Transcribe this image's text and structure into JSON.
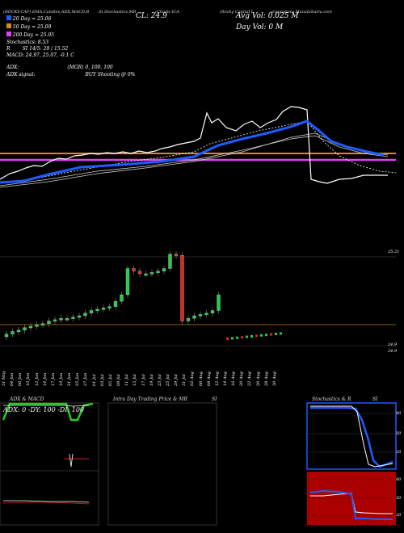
{
  "header": {
    "top_left": "(ROCKY.CAP) EMA,Candles,ADX,MACD,B",
    "top_mid": "SI,Stochastics,MR",
    "top_mid2": "(Charts ICA",
    "top_right": "(Rocky Capital I",
    "top_right2": "orporation) MunafaSutra.com"
  },
  "info": {
    "ema20": "20 Day = 25.06",
    "ema50": "50 Day = 25.09",
    "ema200": "200 Day = 25.05",
    "stoch": "Stochastics: 8.53",
    "rsi": "SI 14/5: 29 / 15.52",
    "rsi_prefix": "R",
    "macd": "MACD: 24.97, 25.07, -0.1 C",
    "close_label": "CL: 24.9",
    "avg_vol": "Avg Vol: 0.025 M",
    "day_vol": "Day Vol: 0   M",
    "adx_line1": "ADX:",
    "adx_line1_vals": "(MGR) 0, 100, 100",
    "adx_line2": "ADX  signal:",
    "adx_line2_vals": "BUY Shooting @ 0%"
  },
  "price_labels": {
    "upper": "25.21",
    "lower1": "24.9",
    "lower2": "24.9"
  },
  "x_dates": [
    "31 May",
    "04 Jun",
    "06 Jun",
    "10 Jun",
    "12 Jun",
    "14 Jun",
    "17 Jun",
    "19 Jun",
    "21 Jun",
    "25 Jun",
    "27 Jun",
    "01 Jul",
    "03 Jul",
    "05 Jul",
    "09 Jul",
    "11 Jul",
    "15 Jul",
    "17 Jul",
    "19 Jul",
    "23 Jul",
    "25 Jul",
    "29 Jul",
    "31 Jul",
    "02 Aug",
    "06 Aug",
    "08 Aug",
    "12 Aug",
    "14 Aug",
    "16 Aug",
    "20 Aug",
    "22 Aug",
    "26 Aug",
    "28 Aug",
    "30 Aug"
  ],
  "panels": {
    "adx_title": "ADX  & MACD",
    "adx_values": "ADX: 0  -DY: 100  -DI: 100",
    "mr_title": "Intra  Day Trading Price  & MR",
    "mr_title2": "SI",
    "stoch_title": "Stochastics & R",
    "stoch_title2": "SI",
    "stoch_ticks": [
      "80",
      "50",
      "20"
    ],
    "rsi_ticks": [
      "80",
      "50",
      "20"
    ]
  },
  "colors": {
    "ema_blue": "#1f5cff",
    "orange_line": "#d98a1a",
    "magenta_line": "#e040fb",
    "price_white": "#ffffff",
    "candle_green": "#22cc44",
    "candle_red": "#dd2222",
    "volume_grid": "#8a5a10",
    "adx_green": "#22cc22",
    "rsi_red": "#aa0000"
  },
  "chart_data": {
    "type": "line",
    "title": "",
    "series": [
      {
        "name": "20 Day",
        "values": [
          24.85,
          24.86,
          24.88,
          24.9,
          24.93,
          24.96,
          24.98,
          25.0,
          25.03,
          25.05,
          25.07,
          25.1,
          25.13,
          25.16,
          25.19,
          25.2,
          25.15,
          25.1,
          25.06
        ]
      },
      {
        "name": "50 Day",
        "values": [
          24.95,
          24.96,
          24.97,
          24.98,
          25.0,
          25.01,
          25.02,
          25.04,
          25.05,
          25.06,
          25.07,
          25.08,
          25.09,
          25.1,
          25.11,
          25.11,
          25.1,
          25.09,
          25.09
        ]
      },
      {
        "name": "200 Day",
        "values": [
          25.05,
          25.05,
          25.05,
          25.05,
          25.05,
          25.05,
          25.05,
          25.05,
          25.05,
          25.05,
          25.05,
          25.05,
          25.05,
          25.05,
          25.05,
          25.05,
          25.05,
          25.05,
          25.05
        ]
      }
    ],
    "candles_close": [
      24.6,
      24.62,
      24.63,
      24.65,
      24.66,
      24.67,
      24.68,
      24.7,
      24.71,
      24.72,
      24.72,
      24.73,
      24.74,
      24.76,
      24.78,
      24.79,
      24.8,
      24.81,
      24.85,
      24.9,
      25.1,
      25.08,
      25.06,
      25.06,
      25.07,
      25.08,
      25.1,
      25.21,
      25.2,
      24.7,
      24.72,
      24.74,
      24.75,
      24.76,
      24.78,
      24.9
    ],
    "ylim": [
      24.5,
      25.3
    ]
  }
}
